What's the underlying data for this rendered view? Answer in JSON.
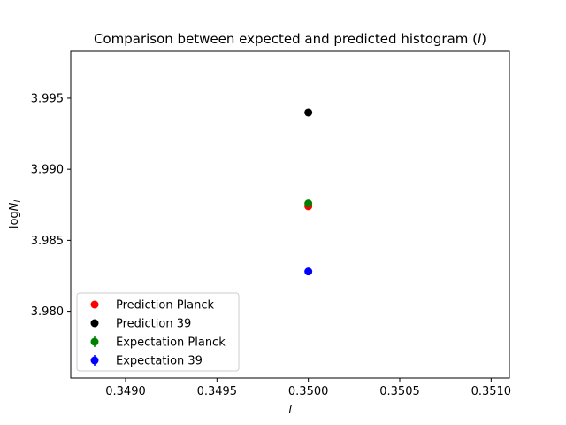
{
  "chart_data": {
    "type": "scatter",
    "title": "Comparison between expected and predicted histogram (l)",
    "title_parts": {
      "prefix": "Comparison between expected and predicted histogram (",
      "var": "l",
      "suffix": ")"
    },
    "xlabel": "l",
    "ylabel": "log N_l",
    "ylabel_parts": {
      "log": "log",
      "N": "N",
      "sub": "l"
    },
    "xlim": [
      0.3487,
      0.3511
    ],
    "ylim": [
      3.9753,
      3.9983
    ],
    "xticks": [
      0.349,
      0.3495,
      0.35,
      0.3505,
      0.351
    ],
    "xtick_labels": [
      "0.3490",
      "0.3495",
      "0.3500",
      "0.3505",
      "0.3510"
    ],
    "yticks": [
      3.98,
      3.985,
      3.99,
      3.995
    ],
    "ytick_labels": [
      "3.980",
      "3.985",
      "3.990",
      "3.995"
    ],
    "grid": false,
    "legend_position": "lower-left",
    "series": [
      {
        "name": "Prediction Planck",
        "color": "#ff0000",
        "x": [
          0.35
        ],
        "y": [
          3.9874
        ],
        "errorbars": false
      },
      {
        "name": "Prediction 39",
        "color": "#000000",
        "x": [
          0.35
        ],
        "y": [
          3.994
        ],
        "errorbars": false
      },
      {
        "name": "Expectation Planck",
        "color": "#008000",
        "x": [
          0.35
        ],
        "y": [
          3.9876
        ],
        "errorbars": true
      },
      {
        "name": "Expectation 39",
        "color": "#0000ff",
        "x": [
          0.35
        ],
        "y": [
          3.9828
        ],
        "errorbars": true
      }
    ]
  }
}
